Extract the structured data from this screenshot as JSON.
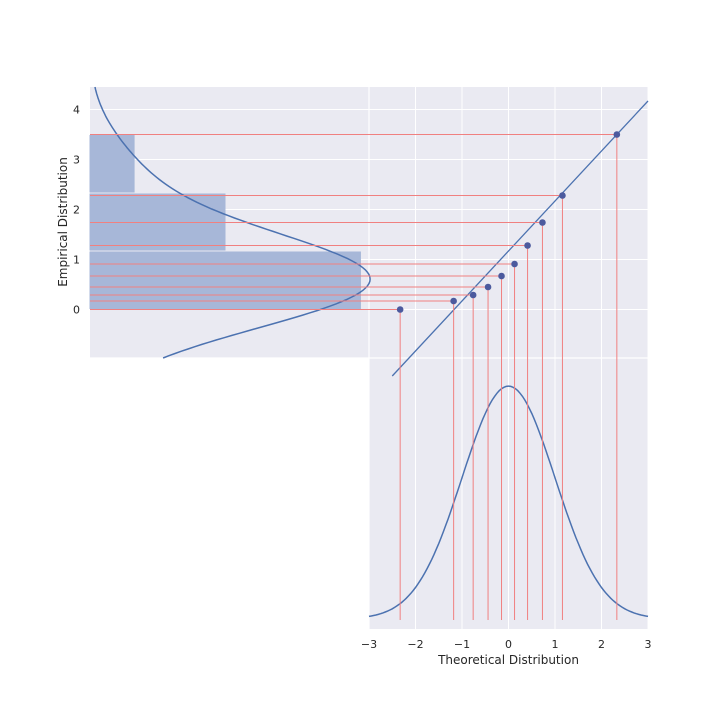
{
  "chart_data": {
    "type": "scatter",
    "description_free": true,
    "xlabel": "Theoretical Distribution",
    "ylabel": "Empirical Distribution",
    "qq": {
      "theoretical": [
        -2.33,
        -1.18,
        -0.76,
        -0.44,
        -0.15,
        0.13,
        0.41,
        0.73,
        1.16,
        2.33
      ],
      "empirical": [
        0.0,
        0.17,
        0.29,
        0.45,
        0.67,
        0.91,
        1.28,
        1.74,
        2.28,
        3.5
      ],
      "xlim": [
        -3,
        3
      ],
      "ylim": [
        -0.97,
        4.45
      ],
      "xticks": [
        -3,
        -2,
        -1,
        0,
        1,
        2,
        3
      ],
      "yticks": [
        0,
        1,
        2,
        3,
        4
      ]
    },
    "histogram": {
      "bins": [
        {
          "from": 0.0,
          "to": 1.17,
          "density": 0.601
        },
        {
          "from": 1.17,
          "to": 2.33,
          "density": 0.3
        },
        {
          "from": 2.33,
          "to": 3.5,
          "density": 0.098
        }
      ]
    },
    "kde": {
      "peak_y": 0.58,
      "peak_density": 0.615
    },
    "normal_pdf": {
      "mean": 0,
      "sd": 1
    },
    "colors": {
      "panel_bg": "#eaeaf2",
      "grid": "#ffffff",
      "points": "#4c5a9e",
      "line": "#4c72b0",
      "bars": "#a7b7d8",
      "guides": "#f08080"
    }
  }
}
